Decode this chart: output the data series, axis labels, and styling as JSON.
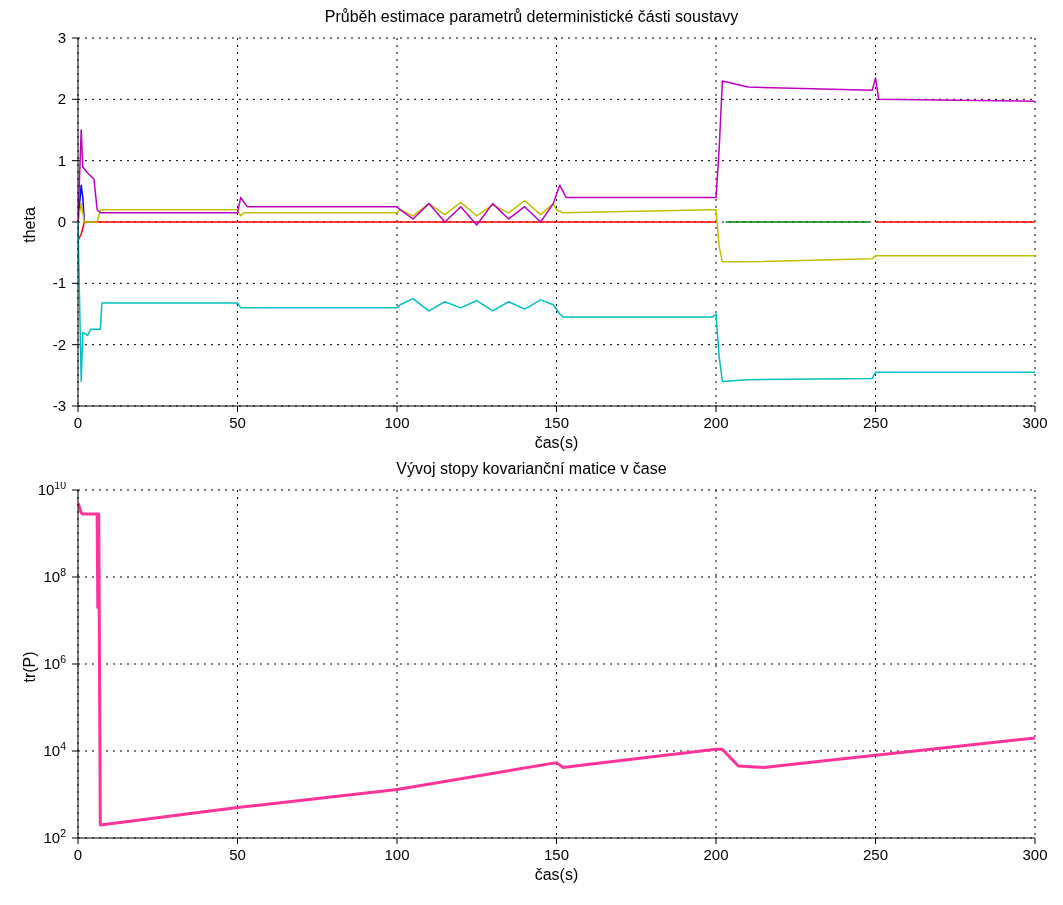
{
  "chart_data": [
    {
      "type": "line",
      "title": "Průběh estimace parametrů deterministické části soustavy",
      "xlabel": "čas(s)",
      "ylabel": "theta",
      "xlim": [
        0,
        300
      ],
      "xticks": [
        0,
        50,
        100,
        150,
        200,
        250,
        300
      ],
      "ylim": [
        -3,
        3
      ],
      "yticks": [
        -3,
        -2,
        -1,
        0,
        1,
        2,
        3
      ],
      "grid": true,
      "marker": "none",
      "series": [
        {
          "color": "#ff0000",
          "x": [
            0,
            1,
            2,
            200,
            225,
            250,
            300
          ],
          "values": [
            -0.3,
            -0.2,
            0,
            0,
            null,
            0,
            0
          ]
        },
        {
          "color": "#0000ff",
          "x": [
            0,
            1,
            1.5,
            2
          ],
          "values": [
            0,
            0.6,
            0.4,
            0
          ]
        },
        {
          "color": "#00c0c0",
          "x": [
            0,
            1,
            1.5,
            3,
            4,
            7,
            7.5,
            50,
            51,
            52,
            100,
            101,
            105,
            110,
            115,
            120,
            125,
            130,
            135,
            140,
            145,
            149,
            151,
            152,
            199,
            200,
            201,
            202,
            210,
            249,
            250,
            251,
            300
          ],
          "values": [
            0,
            -2.6,
            -1.8,
            -1.85,
            -1.75,
            -1.75,
            -1.32,
            -1.32,
            -1.4,
            -1.4,
            -1.4,
            -1.35,
            -1.25,
            -1.45,
            -1.3,
            -1.4,
            -1.28,
            -1.45,
            -1.3,
            -1.42,
            -1.27,
            -1.35,
            -1.5,
            -1.55,
            -1.55,
            -1.5,
            -2.2,
            -2.6,
            -2.57,
            -2.55,
            -2.45,
            -2.45,
            -2.45
          ]
        },
        {
          "color": "#c0c000",
          "x": [
            0,
            1,
            2,
            6,
            7,
            50,
            51,
            52,
            100,
            101,
            105,
            110,
            115,
            120,
            125,
            130,
            135,
            140,
            145,
            149,
            150,
            152,
            199,
            200,
            201,
            202,
            210,
            249,
            250,
            251,
            300
          ],
          "values": [
            0,
            0.3,
            0,
            0,
            0.2,
            0.2,
            0.1,
            0.15,
            0.15,
            0.2,
            0.1,
            0.3,
            0.12,
            0.32,
            0.1,
            0.28,
            0.15,
            0.35,
            0.12,
            0.3,
            0.2,
            0.15,
            0.2,
            0.2,
            -0.4,
            -0.65,
            -0.65,
            -0.6,
            -0.55,
            -0.55,
            -0.55
          ]
        },
        {
          "color": "#c000c0",
          "x": [
            0,
            1,
            1.5,
            3,
            5,
            6,
            7,
            50,
            51,
            53,
            100,
            101,
            105,
            110,
            115,
            120,
            125,
            130,
            135,
            140,
            145,
            149,
            151,
            153,
            200,
            201,
            202,
            210,
            249,
            250,
            251,
            300
          ],
          "values": [
            0,
            1.5,
            0.9,
            0.8,
            0.7,
            0.2,
            0.15,
            0.15,
            0.4,
            0.25,
            0.25,
            0.2,
            0.05,
            0.3,
            0.0,
            0.25,
            -0.05,
            0.3,
            0.05,
            0.25,
            0.0,
            0.3,
            0.6,
            0.4,
            0.4,
            1.2,
            2.3,
            2.2,
            2.15,
            2.35,
            2.0,
            1.97
          ]
        },
        {
          "color": "#008000",
          "x": [
            203,
            248
          ],
          "values": [
            0,
            0
          ]
        }
      ]
    },
    {
      "type": "line",
      "title": "Vývoj stopy kovarianční matice v čase",
      "xlabel": "čas(s)",
      "ylabel": "tr(P)",
      "xlim": [
        0,
        300
      ],
      "xticks": [
        0,
        50,
        100,
        150,
        200,
        250,
        300
      ],
      "log": true,
      "ylim": [
        100,
        10000000000
      ],
      "yticks": [
        {
          "value": 100,
          "label": "10$^{2}$"
        },
        {
          "value": 10000,
          "label": "10$^{4}$"
        },
        {
          "value": 1000000,
          "label": "10$^{6}$"
        },
        {
          "value": 100000000,
          "label": "10$^{8}$"
        },
        {
          "value": 10000000000,
          "label": "10$^{10}$"
        }
      ],
      "grid": true,
      "marker": "none",
      "series": [
        {
          "color": "#ff3399",
          "x": [
            0,
            1,
            1.5,
            6,
            6.2,
            6.5,
            7,
            50,
            100,
            150,
            152,
            200,
            202,
            207,
            215,
            250,
            300
          ],
          "values": [
            5000000000,
            3000000000,
            2800000000,
            2800000000,
            20000000,
            2800000000,
            200,
            500,
            1300,
            5400,
            4200,
            11000,
            11000,
            4500,
            4200,
            8000,
            20000
          ]
        }
      ]
    }
  ]
}
